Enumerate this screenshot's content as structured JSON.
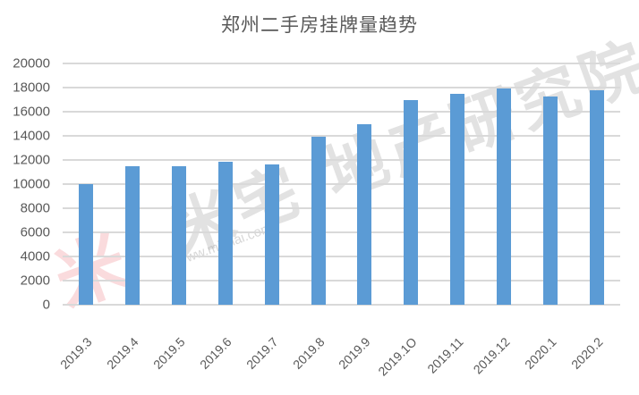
{
  "title": "郑州二手房挂牌量趋势",
  "watermark": {
    "logo": "米",
    "text": "米宅 地产研究院",
    "url": "www.mizhai.com"
  },
  "colors": {
    "bar": "#5b9bd5",
    "grid": "#d9d9d9",
    "text": "#595959"
  },
  "yticks": [
    "0",
    "2000",
    "4000",
    "6000",
    "8000",
    "10000",
    "12000",
    "14000",
    "16000",
    "18000",
    "20000"
  ],
  "xticks": [
    "2019.3",
    "2019.4",
    "2019.5",
    "2019.6",
    "2019.7",
    "2019.8",
    "2019.9",
    "2019.1O",
    "2019.11",
    "2019.12",
    "2020.1",
    "2020.2"
  ],
  "chart_data": {
    "type": "bar",
    "title": "郑州二手房挂牌量趋势",
    "xlabel": "",
    "ylabel": "",
    "categories": [
      "2019.3",
      "2019.4",
      "2019.5",
      "2019.6",
      "2019.7",
      "2019.8",
      "2019.9",
      "2019.10",
      "2019.11",
      "2019.12",
      "2020.1",
      "2020.2"
    ],
    "values": [
      10000,
      11450,
      11450,
      11850,
      11650,
      13950,
      15000,
      16950,
      17450,
      17950,
      17250,
      17750
    ],
    "ylim": [
      0,
      20000
    ],
    "yticks": [
      0,
      2000,
      4000,
      6000,
      8000,
      10000,
      12000,
      14000,
      16000,
      18000,
      20000
    ],
    "grid": true,
    "legend": "none"
  }
}
